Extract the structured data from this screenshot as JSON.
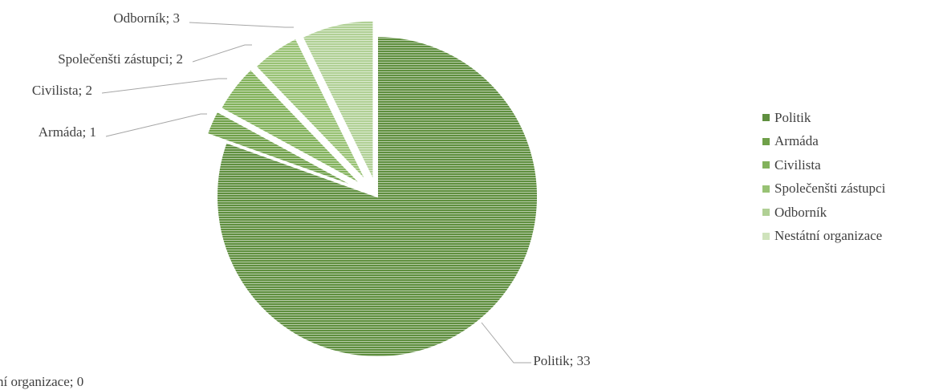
{
  "chart_data": {
    "type": "pie",
    "title": "",
    "categories": [
      "Politik",
      "Armáda",
      "Civilista",
      "Společenšti zástupci",
      "Odborník",
      "Nestátní organizace"
    ],
    "values": [
      33,
      1,
      2,
      2,
      3,
      0
    ],
    "colors": [
      "#5f8f3f",
      "#6fa049",
      "#82b25b",
      "#98c274",
      "#b0d095",
      "#cfe3bc"
    ],
    "data_labels": [
      "Politik; 33",
      "Armáda; 1",
      "Civilista; 2",
      "Společenšti zástupci; 2",
      "Odborník; 3",
      "ní organizace;  0"
    ],
    "legend_position": "right",
    "exploded_slices": [
      "Armáda",
      "Civilista",
      "Společenšti zástupci",
      "Odborník",
      "Nestátní organizace"
    ]
  }
}
